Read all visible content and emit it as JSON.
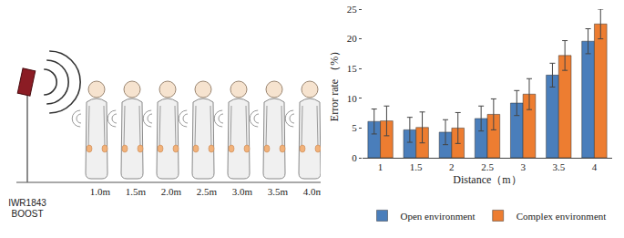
{
  "chart_data": {
    "type": "bar",
    "x_label": "Distance（m）",
    "y_label": "Error rate （%）",
    "categories": [
      "1",
      "1.5",
      "2",
      "2.5",
      "3",
      "3.5",
      "4"
    ],
    "series": [
      {
        "name": "Open environment",
        "color": "#4a7ebb",
        "values": [
          6.1,
          4.7,
          4.3,
          6.6,
          9.2,
          13.9,
          19.6
        ],
        "errors": [
          2.1,
          2.1,
          2.1,
          2.1,
          2.1,
          2.0,
          2.1
        ]
      },
      {
        "name": "Complex environment",
        "color": "#ed7d31",
        "values": [
          6.2,
          5.1,
          5.0,
          7.3,
          10.7,
          17.2,
          22.5
        ],
        "errors": [
          2.5,
          2.6,
          2.6,
          2.6,
          2.6,
          2.5,
          2.5
        ]
      }
    ],
    "ylim": [
      0,
      25
    ],
    "yticks": [
      0,
      5,
      10,
      15,
      20,
      25
    ],
    "grid": false,
    "legend": "bottom"
  },
  "diagram": {
    "device_label": "IWR1843 BOOST",
    "distances": [
      "1.0m",
      "1.5m",
      "2.0m",
      "2.5m",
      "3.0m",
      "3.5m",
      "4.0m"
    ]
  }
}
